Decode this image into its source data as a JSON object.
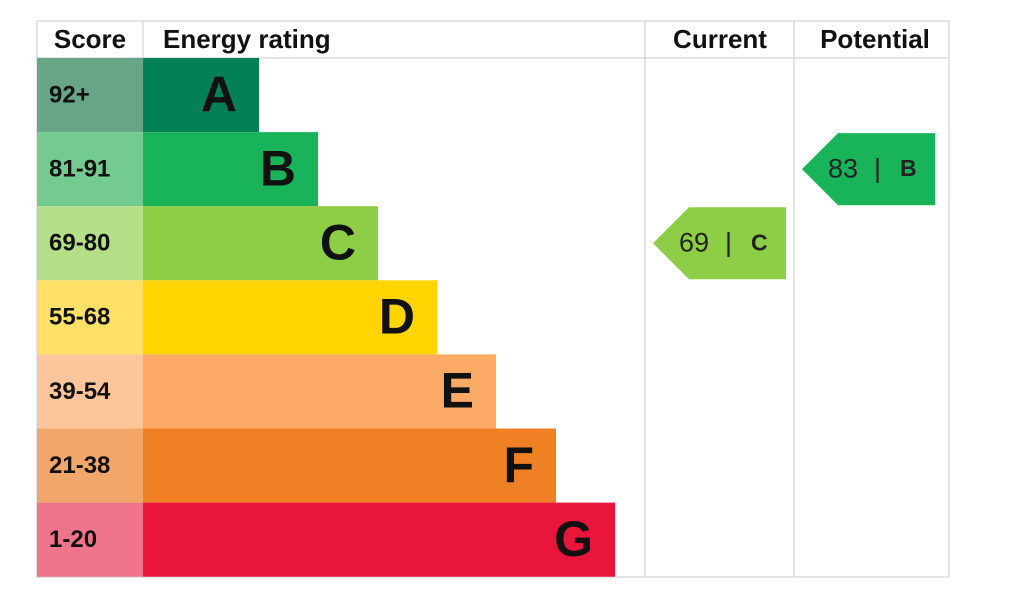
{
  "headers": {
    "score": "Score",
    "rating": "Energy rating",
    "current": "Current",
    "potential": "Potential"
  },
  "bands": [
    {
      "score": "92+",
      "letter": "A",
      "color": "#008054",
      "score_color": "#68a587"
    },
    {
      "score": "81-91",
      "letter": "B",
      "color": "#19b459",
      "score_color": "#73cb8f"
    },
    {
      "score": "69-80",
      "letter": "C",
      "color": "#8dce46",
      "score_color": "#b4de87"
    },
    {
      "score": "55-68",
      "letter": "D",
      "color": "#ffd500",
      "score_color": "#ffe168"
    },
    {
      "score": "39-54",
      "letter": "E",
      "color": "#fcaa65",
      "score_color": "#fdc59b"
    },
    {
      "score": "21-38",
      "letter": "F",
      "color": "#ef8023",
      "score_color": "#f2a66a"
    },
    {
      "score": "1-20",
      "letter": "G",
      "color": "#e9153b",
      "score_color": "#f1758a"
    }
  ],
  "separator": "|",
  "current": {
    "value": "69",
    "letter": "C"
  },
  "potential": {
    "value": "83",
    "letter": "B"
  }
}
